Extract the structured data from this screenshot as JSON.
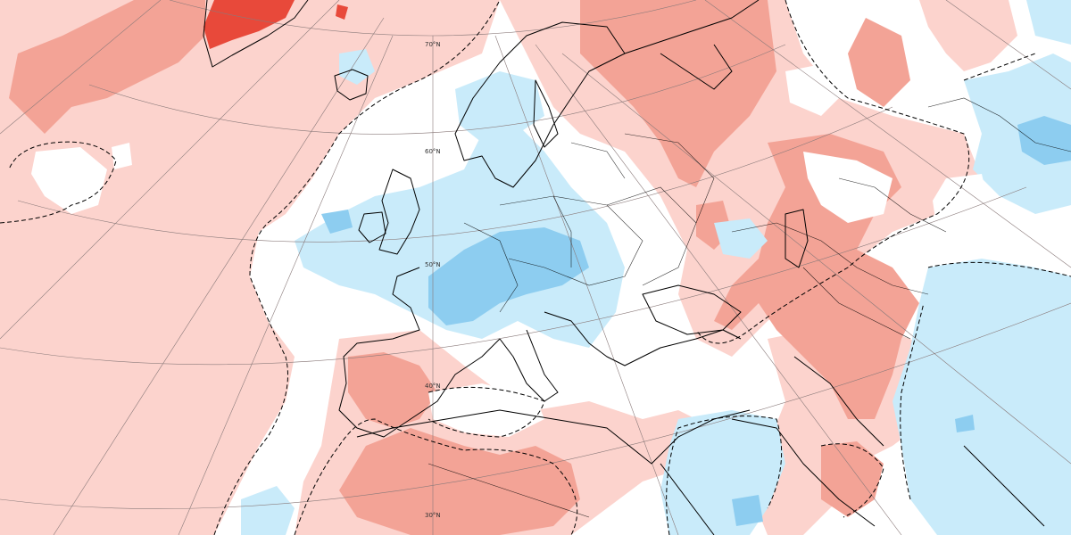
{
  "map": {
    "type": "anomaly-map",
    "colors": {
      "background": "#ffffff",
      "warm_light": "#fcd3cd",
      "warm_medium": "#f3a396",
      "warm_strong": "#e8493a",
      "cool_light": "#c9ebfa",
      "cool_medium": "#8dcdf0",
      "land_outline": "#000000",
      "graticule": "#8a7a7a"
    },
    "latitude_labels": [
      "70°N",
      "60°N",
      "50°N",
      "40°N",
      "30°N"
    ],
    "contour_style": "dashed"
  }
}
